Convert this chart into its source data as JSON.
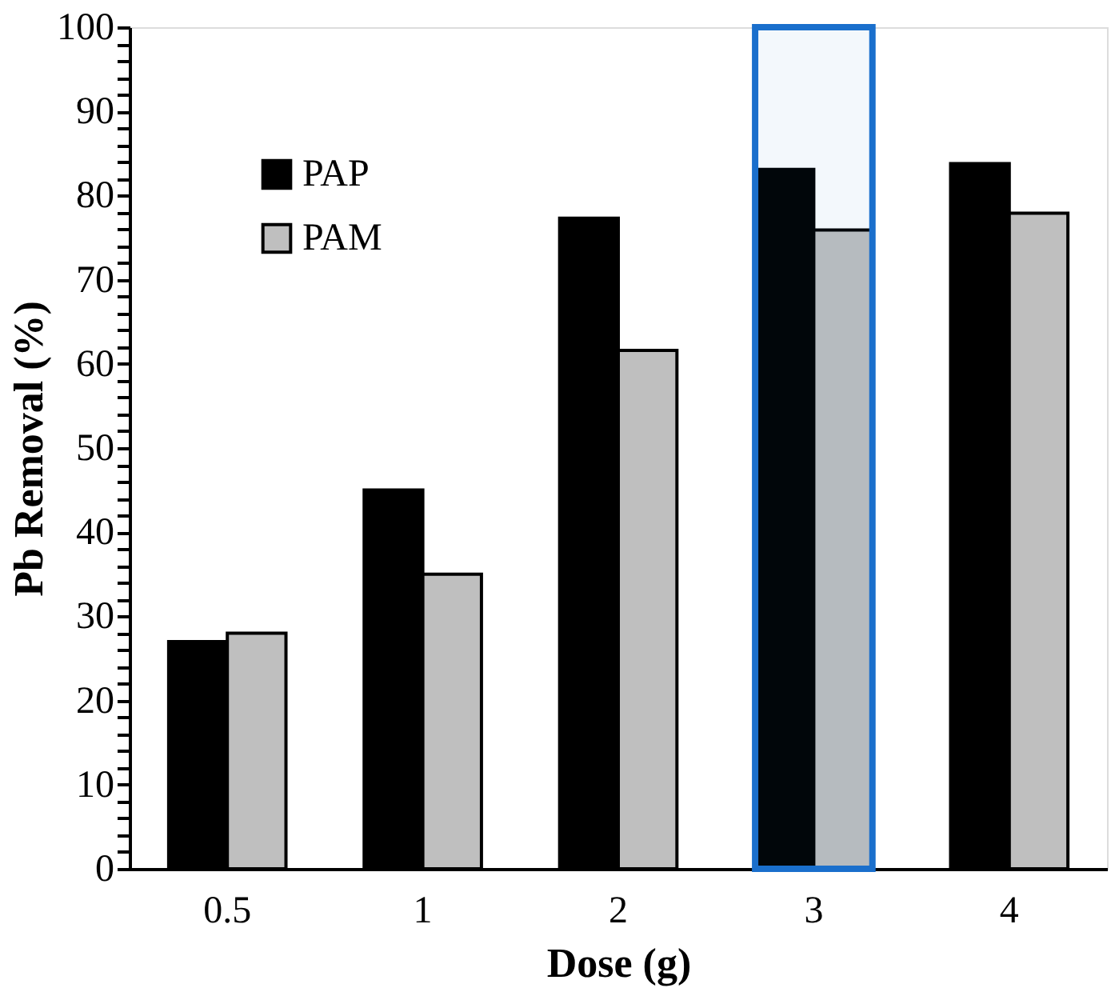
{
  "chart_data": {
    "type": "bar",
    "xlabel": "Dose (g)",
    "ylabel": "Pb Removal (%)",
    "categories": [
      "0.5",
      "1",
      "2",
      "3",
      "4"
    ],
    "series": [
      {
        "name": "PAP",
        "color": "#000000",
        "values": [
          27,
          45,
          77.3,
          83.1,
          83.8
        ]
      },
      {
        "name": "PAM",
        "color": "#bfbfbf",
        "values": [
          28,
          35,
          61.6,
          75.9,
          77.9
        ]
      }
    ],
    "ylim": [
      0,
      100
    ],
    "yticks": [
      0,
      {
        "value": 2,
        "label": null
      },
      {
        "value": 4,
        "label": null
      },
      {
        "value": 6,
        "label": null
      },
      {
        "value": 8,
        "label": null
      },
      10,
      {
        "value": 12,
        "label": null
      },
      {
        "value": 14,
        "label": null
      },
      {
        "value": 16,
        "label": null
      },
      {
        "value": 18,
        "label": null
      },
      20,
      {
        "value": 22,
        "label": null
      },
      {
        "value": 24,
        "label": null
      },
      {
        "value": 26,
        "label": null
      },
      {
        "value": 28,
        "label": null
      },
      30,
      {
        "value": 32,
        "label": null
      },
      {
        "value": 34,
        "label": null
      },
      {
        "value": 36,
        "label": null
      },
      {
        "value": 38,
        "label": null
      },
      40,
      {
        "value": 42,
        "label": null
      },
      {
        "value": 44,
        "label": null
      },
      {
        "value": 46,
        "label": null
      },
      {
        "value": 48,
        "label": null
      },
      50,
      {
        "value": 52,
        "label": null
      },
      {
        "value": 54,
        "label": null
      },
      {
        "value": 56,
        "label": null
      },
      {
        "value": 58,
        "label": null
      },
      60,
      {
        "value": 62,
        "label": null
      },
      {
        "value": 64,
        "label": null
      },
      {
        "value": 66,
        "label": null
      },
      {
        "value": 68,
        "label": null
      },
      70,
      {
        "value": 72,
        "label": null
      },
      {
        "value": 74,
        "label": null
      },
      {
        "value": 76,
        "label": null
      },
      {
        "value": 78,
        "label": null
      },
      80,
      {
        "value": 82,
        "label": null
      },
      {
        "value": 84,
        "label": null
      },
      {
        "value": 86,
        "label": null
      },
      {
        "value": 88,
        "label": null
      },
      90,
      {
        "value": 92,
        "label": null
      },
      {
        "value": 94,
        "label": null
      },
      {
        "value": 96,
        "label": null
      },
      {
        "value": 98,
        "label": null
      },
      100
    ],
    "bands": [
      {
        "axis": "x",
        "from": "3",
        "to": "3",
        "color": "#1a6fcc"
      }
    ],
    "grid": false,
    "legend": "top left"
  }
}
